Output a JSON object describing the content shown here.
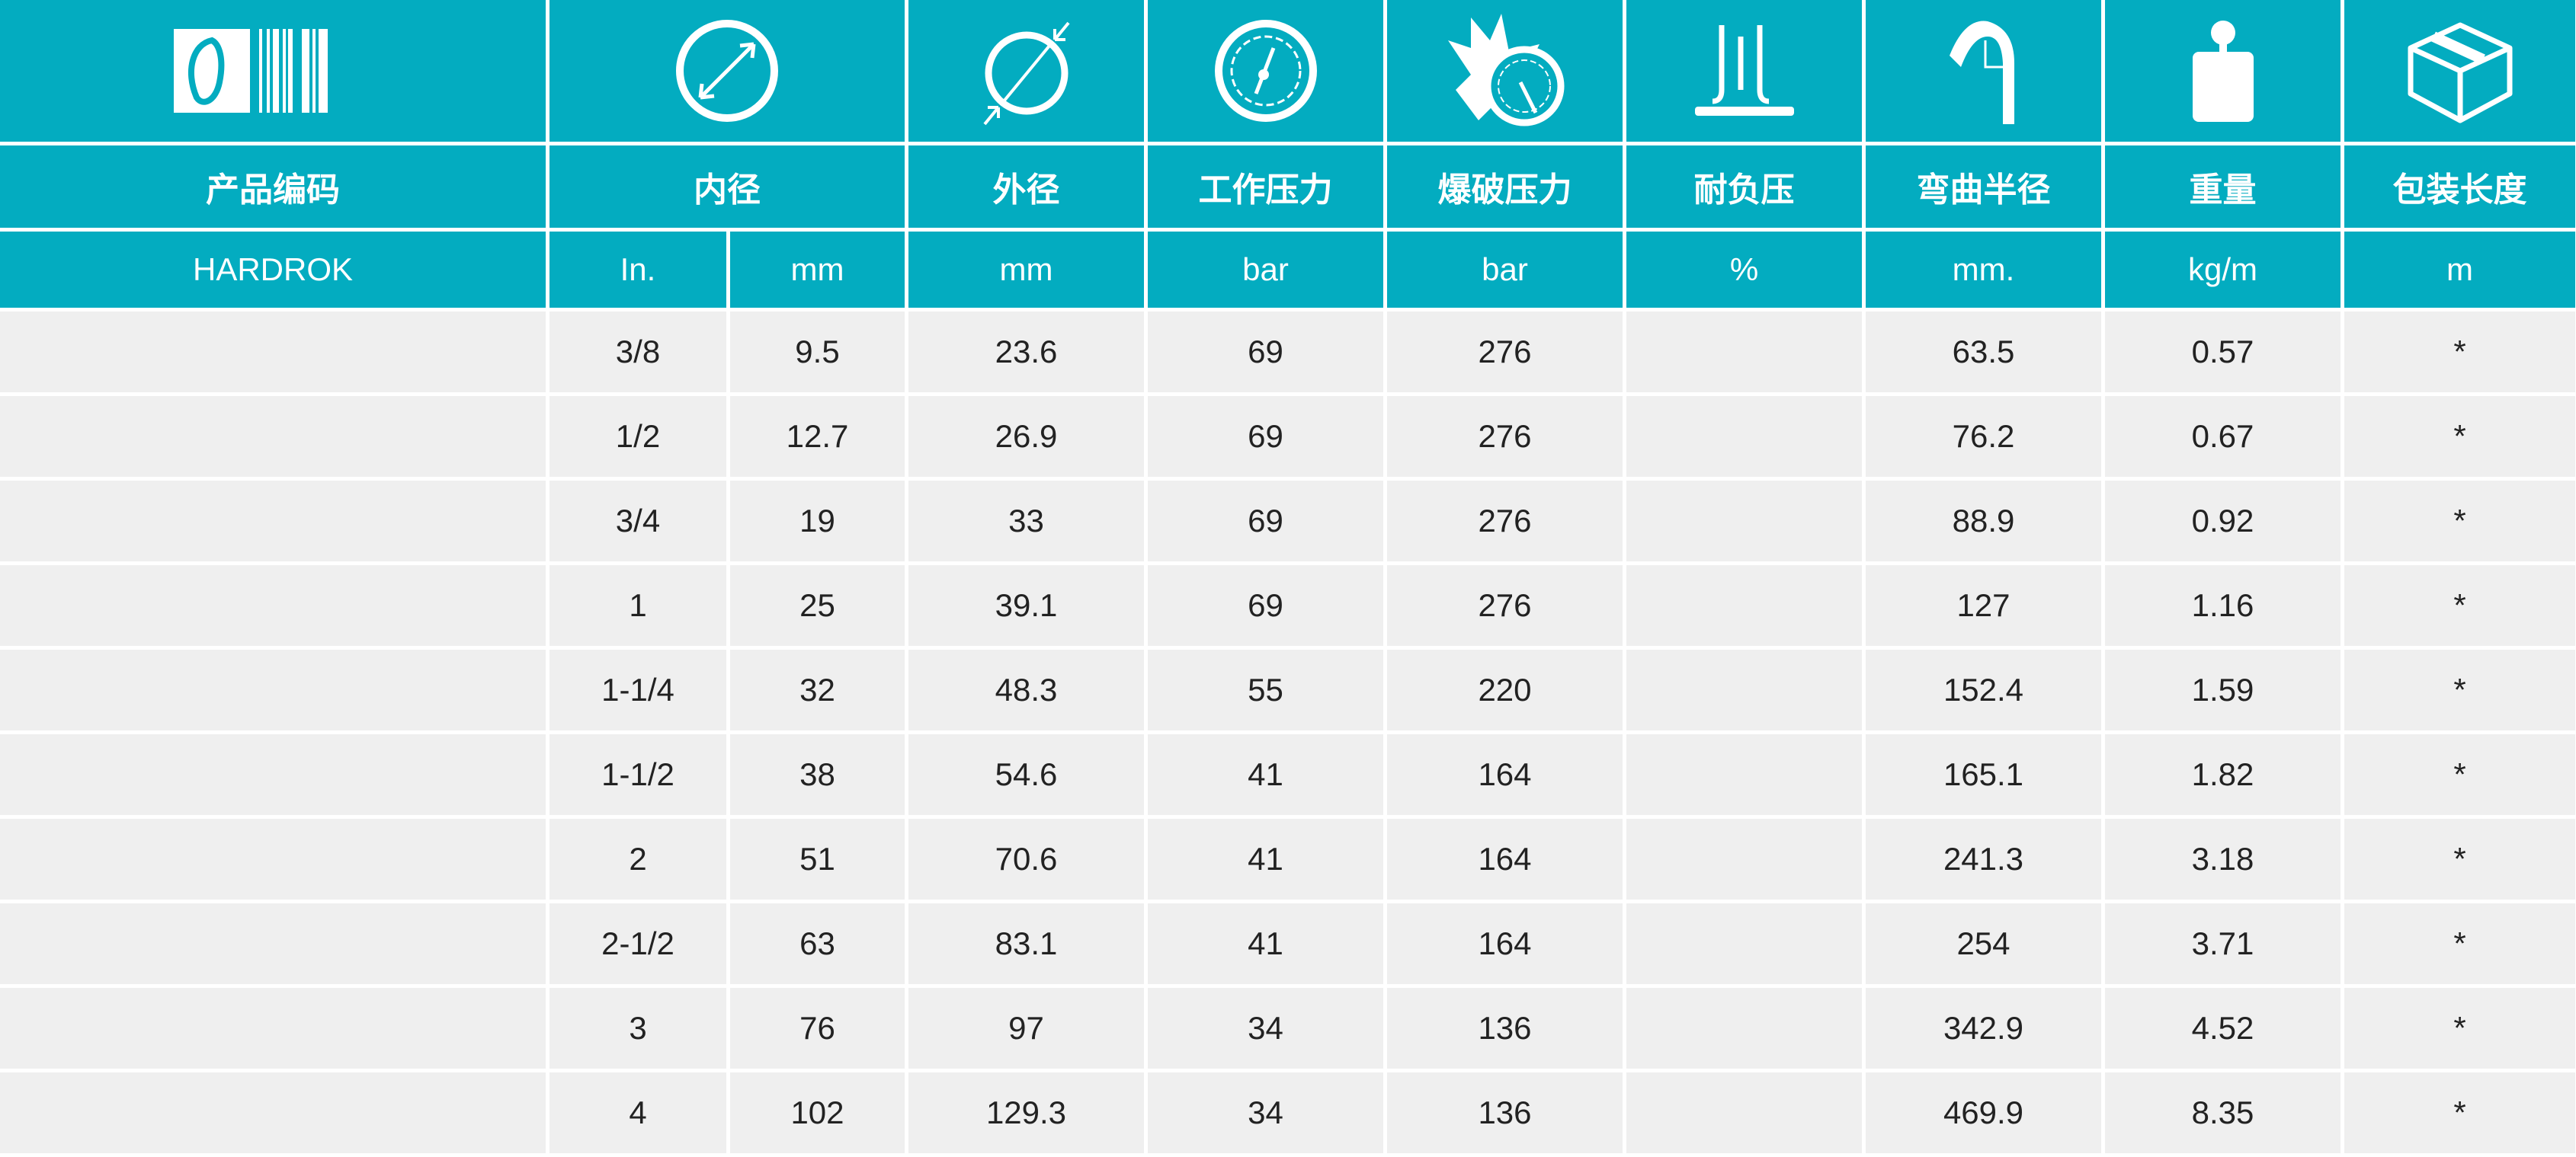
{
  "colors": {
    "header": "#03acc0",
    "row": "#efefef"
  },
  "icons": [
    "logo-barcode-icon",
    "inner-diameter-icon",
    "outer-diameter-icon",
    "working-pressure-gauge-icon",
    "burst-pressure-icon",
    "vacuum-icon",
    "bend-radius-icon",
    "weight-icon",
    "package-box-icon"
  ],
  "headers": {
    "code": "产品编码",
    "inner": "内径",
    "outer": "外径",
    "working": "工作压力",
    "burst": "爆破压力",
    "vacuum": "耐负压",
    "bend": "弯曲半径",
    "weight": "重量",
    "length": "包装长度"
  },
  "units": {
    "code": "HARDROK",
    "inner_in": "In.",
    "inner_mm": "mm",
    "outer": "mm",
    "working": "bar",
    "burst": "bar",
    "vacuum": "%",
    "bend": "mm.",
    "weight": "kg/m",
    "length": "m"
  },
  "rows": [
    {
      "code": "",
      "in": "3/8",
      "mm": "9.5",
      "od": "23.6",
      "wp": "69",
      "bp": "276",
      "vac": "",
      "bend": "63.5",
      "wt": "0.57",
      "len": "*"
    },
    {
      "code": "",
      "in": "1/2",
      "mm": "12.7",
      "od": "26.9",
      "wp": "69",
      "bp": "276",
      "vac": "",
      "bend": "76.2",
      "wt": "0.67",
      "len": "*"
    },
    {
      "code": "",
      "in": "3/4",
      "mm": "19",
      "od": "33",
      "wp": "69",
      "bp": "276",
      "vac": "",
      "bend": "88.9",
      "wt": "0.92",
      "len": "*"
    },
    {
      "code": "",
      "in": "1",
      "mm": "25",
      "od": "39.1",
      "wp": "69",
      "bp": "276",
      "vac": "",
      "bend": "127",
      "wt": "1.16",
      "len": "*"
    },
    {
      "code": "",
      "in": "1-1/4",
      "mm": "32",
      "od": "48.3",
      "wp": "55",
      "bp": "220",
      "vac": "",
      "bend": "152.4",
      "wt": "1.59",
      "len": "*"
    },
    {
      "code": "",
      "in": "1-1/2",
      "mm": "38",
      "od": "54.6",
      "wp": "41",
      "bp": "164",
      "vac": "",
      "bend": "165.1",
      "wt": "1.82",
      "len": "*"
    },
    {
      "code": "",
      "in": "2",
      "mm": "51",
      "od": "70.6",
      "wp": "41",
      "bp": "164",
      "vac": "",
      "bend": "241.3",
      "wt": "3.18",
      "len": "*"
    },
    {
      "code": "",
      "in": "2-1/2",
      "mm": "63",
      "od": "83.1",
      "wp": "41",
      "bp": "164",
      "vac": "",
      "bend": "254",
      "wt": "3.71",
      "len": "*"
    },
    {
      "code": "",
      "in": "3",
      "mm": "76",
      "od": "97",
      "wp": "34",
      "bp": "136",
      "vac": "",
      "bend": "342.9",
      "wt": "4.52",
      "len": "*"
    },
    {
      "code": "",
      "in": "4",
      "mm": "102",
      "od": "129.3",
      "wp": "34",
      "bp": "136",
      "vac": "",
      "bend": "469.9",
      "wt": "8.35",
      "len": "*"
    }
  ]
}
